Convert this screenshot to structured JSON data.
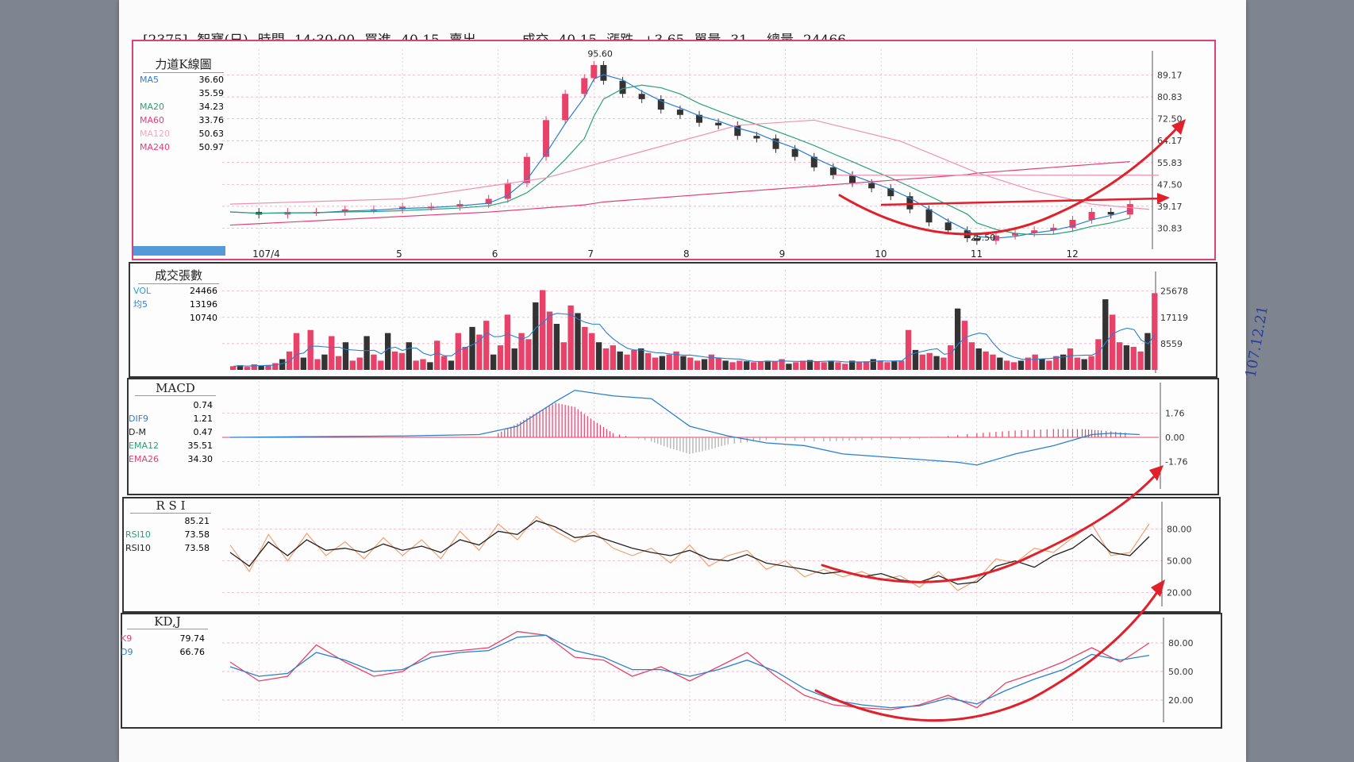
{
  "header": {
    "code": "[2375]",
    "name": "智寶(日)",
    "time_label": "時間",
    "time": "14:30:00",
    "bid_label": "買進",
    "bid": "40.15",
    "ask_label": "賣出",
    "ask": "-",
    "deal_label": "成交",
    "deal": "40.15",
    "change_label": "漲跌",
    "change": "+3.65",
    "unit_label": "單量",
    "unit": "31",
    "total_label": "總量",
    "total": "24466"
  },
  "colors": {
    "up": "#e8426a",
    "down": "#333333",
    "ma5": "#2a7fd0",
    "ma20": "#2aa07a",
    "ma60": "#e0407a",
    "arrow": "#e0202a"
  },
  "handwritten_note": "107.12.21",
  "chart_data": [
    {
      "type": "candlestick",
      "title": "力道K線圖",
      "legend": [
        {
          "name": "MA5",
          "value": "36.60"
        },
        {
          "name": "",
          "value": "35.59"
        },
        {
          "name": "MA20",
          "value": "34.23"
        },
        {
          "name": "MA60",
          "value": "33.76"
        },
        {
          "name": "MA120",
          "value": "50.63"
        },
        {
          "name": "MA240",
          "value": "50.97"
        }
      ],
      "y_ticks": [
        "89.17",
        "80.83",
        "72.50",
        "64.17",
        "55.83",
        "47.50",
        "39.17",
        "30.83"
      ],
      "ylim": [
        24,
        96
      ],
      "x_ticks": [
        "107/4",
        "5",
        "6",
        "7",
        "8",
        "9",
        "10",
        "11",
        "12"
      ],
      "annotations": [
        {
          "text": "95.60",
          "x": 7,
          "y": 95.6
        },
        {
          "text": "25.50",
          "x": 11,
          "y": 25.5
        }
      ],
      "close_series": [
        [
          3.2,
          37
        ],
        [
          3.5,
          36
        ],
        [
          3.8,
          37
        ],
        [
          4.1,
          37
        ],
        [
          4.4,
          38
        ],
        [
          4.7,
          38
        ],
        [
          5,
          39
        ],
        [
          5.3,
          39
        ],
        [
          5.6,
          40
        ],
        [
          5.9,
          42
        ],
        [
          6.1,
          48
        ],
        [
          6.3,
          58
        ],
        [
          6.5,
          72
        ],
        [
          6.7,
          82
        ],
        [
          6.9,
          88
        ],
        [
          7.0,
          93
        ],
        [
          7.1,
          87
        ],
        [
          7.3,
          82
        ],
        [
          7.5,
          80
        ],
        [
          7.7,
          76
        ],
        [
          7.9,
          74
        ],
        [
          8.1,
          71
        ],
        [
          8.3,
          70
        ],
        [
          8.5,
          66
        ],
        [
          8.7,
          65
        ],
        [
          8.9,
          61
        ],
        [
          9.1,
          58
        ],
        [
          9.3,
          54
        ],
        [
          9.5,
          51
        ],
        [
          9.7,
          48
        ],
        [
          9.9,
          46
        ],
        [
          10.1,
          43
        ],
        [
          10.3,
          38
        ],
        [
          10.5,
          33
        ],
        [
          10.7,
          30
        ],
        [
          10.9,
          27
        ],
        [
          11.0,
          26
        ],
        [
          11.2,
          28
        ],
        [
          11.4,
          29
        ],
        [
          11.6,
          30
        ],
        [
          11.8,
          31
        ],
        [
          12.0,
          34
        ],
        [
          12.2,
          37
        ],
        [
          12.4,
          36
        ],
        [
          12.6,
          40
        ]
      ]
    },
    {
      "type": "bar",
      "title": "成交張數",
      "legend": [
        {
          "name": "VOL",
          "value": "24466"
        },
        {
          "name": "均5",
          "value": "13196"
        },
        {
          "name": "",
          "value": "10740"
        }
      ],
      "y_ticks": [
        "25678",
        "17119",
        "8559"
      ],
      "ylim": [
        0,
        30000
      ],
      "values": [
        1200,
        1500,
        1000,
        1800,
        1400,
        1600,
        2200,
        3500,
        6000,
        12000,
        4000,
        13000,
        3500,
        5000,
        11000,
        4500,
        9000,
        3000,
        4000,
        11000,
        5000,
        3000,
        12000,
        6000,
        5500,
        9000,
        3000,
        3500,
        2500,
        9500,
        4500,
        3000,
        12000,
        7500,
        14000,
        11500,
        16000,
        5000,
        8000,
        18000,
        7000,
        12000,
        10000,
        22000,
        26000,
        19000,
        15000,
        9000,
        21000,
        18500,
        14000,
        12000,
        9000,
        7000,
        8000,
        6000,
        5000,
        6500,
        7000,
        5500,
        4000,
        4500,
        5000,
        6000,
        4500,
        4000,
        3000,
        3500,
        5000,
        4000,
        3000,
        2500,
        3000,
        2800,
        2500,
        2800,
        3000,
        2800,
        3500,
        2000,
        2500,
        3000,
        3200,
        2800,
        2500,
        3000,
        2500,
        2000,
        3000,
        2500,
        2800,
        3500,
        3000,
        2500,
        2800,
        3000,
        13000,
        6500,
        5000,
        5500,
        4500,
        4000,
        8000,
        20000,
        16000,
        9000,
        7000,
        6000,
        5000,
        4000,
        3000,
        2500,
        3000,
        4000,
        5000,
        3500,
        3000,
        4500,
        5000,
        7000,
        4000,
        3500,
        4500,
        10000,
        23000,
        18000,
        9000,
        8000,
        7500,
        6000,
        12000,
        25000
      ]
    },
    {
      "type": "line",
      "title": "MACD",
      "legend": [
        {
          "name": "",
          "value": "0.74"
        },
        {
          "name": "DIF9",
          "value": "1.21"
        },
        {
          "name": "D-M",
          "value": "0.47"
        },
        {
          "name": "EMA12",
          "value": "35.51"
        },
        {
          "name": "EMA26",
          "value": "34.30"
        }
      ],
      "y_ticks": [
        "1.76",
        "0.00",
        "-1.76"
      ],
      "ylim": [
        -3.5,
        3.5
      ],
      "dif": [
        [
          3.2,
          0
        ],
        [
          4,
          0.05
        ],
        [
          5,
          0.1
        ],
        [
          5.8,
          0.2
        ],
        [
          6.2,
          0.8
        ],
        [
          6.6,
          2.6
        ],
        [
          6.8,
          3.4
        ],
        [
          7.2,
          3.0
        ],
        [
          7.6,
          2.8
        ],
        [
          8.0,
          0.8
        ],
        [
          8.4,
          0.1
        ],
        [
          8.8,
          -0.4
        ],
        [
          9.2,
          -0.6
        ],
        [
          9.6,
          -1.2
        ],
        [
          10.0,
          -1.4
        ],
        [
          10.4,
          -1.6
        ],
        [
          10.8,
          -1.8
        ],
        [
          11.0,
          -2.0
        ],
        [
          11.4,
          -1.2
        ],
        [
          11.8,
          -0.6
        ],
        [
          12.2,
          0.2
        ],
        [
          12.4,
          0.3
        ],
        [
          12.7,
          0.2
        ]
      ],
      "osc": [
        [
          6.0,
          0.3
        ],
        [
          6.2,
          1.0
        ],
        [
          6.4,
          1.8
        ],
        [
          6.6,
          2.5
        ],
        [
          6.8,
          2.2
        ],
        [
          7.0,
          1.2
        ],
        [
          7.2,
          0.3
        ],
        [
          7.6,
          -0.3
        ],
        [
          7.8,
          -0.8
        ],
        [
          8.0,
          -1.2
        ],
        [
          8.2,
          -0.9
        ],
        [
          8.4,
          -0.5
        ],
        [
          8.8,
          -0.2
        ],
        [
          9.4,
          -0.3
        ],
        [
          9.8,
          -0.2
        ],
        [
          10.4,
          -0.1
        ],
        [
          11.0,
          0.3
        ],
        [
          11.4,
          0.5
        ],
        [
          11.8,
          0.6
        ],
        [
          12.1,
          0.6
        ],
        [
          12.3,
          0.5
        ],
        [
          12.6,
          0.3
        ]
      ]
    },
    {
      "type": "line",
      "title": "R S I",
      "legend": [
        {
          "name": "",
          "value": "85.21"
        },
        {
          "name": "RSI10",
          "value": "73.58"
        },
        {
          "name": "RSI10",
          "value": "73.58"
        }
      ],
      "y_ticks": [
        "80.00",
        "50.00",
        "20.00"
      ],
      "ylim": [
        10,
        100
      ],
      "rsi": [
        [
          3.2,
          58
        ],
        [
          3.4,
          45
        ],
        [
          3.6,
          68
        ],
        [
          3.8,
          55
        ],
        [
          4.0,
          70
        ],
        [
          4.2,
          60
        ],
        [
          4.4,
          62
        ],
        [
          4.6,
          58
        ],
        [
          4.8,
          66
        ],
        [
          5.0,
          60
        ],
        [
          5.2,
          64
        ],
        [
          5.4,
          58
        ],
        [
          5.6,
          70
        ],
        [
          5.8,
          65
        ],
        [
          6.0,
          78
        ],
        [
          6.2,
          75
        ],
        [
          6.4,
          88
        ],
        [
          6.6,
          82
        ],
        [
          6.8,
          72
        ],
        [
          7.0,
          74
        ],
        [
          7.2,
          68
        ],
        [
          7.4,
          62
        ],
        [
          7.6,
          58
        ],
        [
          7.8,
          55
        ],
        [
          8.0,
          60
        ],
        [
          8.2,
          52
        ],
        [
          8.4,
          50
        ],
        [
          8.6,
          56
        ],
        [
          8.8,
          48
        ],
        [
          9.0,
          45
        ],
        [
          9.2,
          42
        ],
        [
          9.4,
          38
        ],
        [
          9.6,
          40
        ],
        [
          9.8,
          35
        ],
        [
          10.0,
          38
        ],
        [
          10.2,
          32
        ],
        [
          10.4,
          30
        ],
        [
          10.6,
          36
        ],
        [
          10.8,
          28
        ],
        [
          11.0,
          30
        ],
        [
          11.2,
          45
        ],
        [
          11.4,
          50
        ],
        [
          11.6,
          44
        ],
        [
          11.8,
          55
        ],
        [
          12.0,
          62
        ],
        [
          12.2,
          75
        ],
        [
          12.4,
          58
        ],
        [
          12.6,
          55
        ],
        [
          12.8,
          73
        ]
      ],
      "rsi_fast": [
        [
          3.2,
          65
        ],
        [
          3.4,
          40
        ],
        [
          3.6,
          75
        ],
        [
          3.8,
          50
        ],
        [
          4.0,
          76
        ],
        [
          4.2,
          55
        ],
        [
          4.4,
          68
        ],
        [
          4.6,
          52
        ],
        [
          4.8,
          72
        ],
        [
          5.0,
          55
        ],
        [
          5.2,
          70
        ],
        [
          5.4,
          52
        ],
        [
          5.6,
          78
        ],
        [
          5.8,
          60
        ],
        [
          6.0,
          85
        ],
        [
          6.2,
          70
        ],
        [
          6.4,
          92
        ],
        [
          6.6,
          78
        ],
        [
          6.8,
          68
        ],
        [
          7.0,
          78
        ],
        [
          7.2,
          62
        ],
        [
          7.4,
          55
        ],
        [
          7.6,
          62
        ],
        [
          7.8,
          48
        ],
        [
          8.0,
          65
        ],
        [
          8.2,
          45
        ],
        [
          8.4,
          55
        ],
        [
          8.6,
          60
        ],
        [
          8.8,
          42
        ],
        [
          9.0,
          50
        ],
        [
          9.2,
          35
        ],
        [
          9.4,
          42
        ],
        [
          9.6,
          35
        ],
        [
          9.8,
          40
        ],
        [
          10.0,
          32
        ],
        [
          10.2,
          36
        ],
        [
          10.4,
          25
        ],
        [
          10.6,
          40
        ],
        [
          10.8,
          22
        ],
        [
          11.0,
          32
        ],
        [
          11.2,
          52
        ],
        [
          11.4,
          48
        ],
        [
          11.6,
          62
        ],
        [
          11.8,
          58
        ],
        [
          12.0,
          72
        ],
        [
          12.2,
          85
        ],
        [
          12.4,
          55
        ],
        [
          12.6,
          58
        ],
        [
          12.8,
          85
        ]
      ]
    },
    {
      "type": "line",
      "title": "KD,J",
      "legend": [
        {
          "name": "K9",
          "value": "79.74"
        },
        {
          "name": "D9",
          "value": "66.76"
        }
      ],
      "y_ticks": [
        "80.00",
        "50.00",
        "20.00"
      ],
      "ylim": [
        0,
        100
      ],
      "k": [
        [
          3.2,
          60
        ],
        [
          3.5,
          40
        ],
        [
          3.8,
          45
        ],
        [
          4.1,
          78
        ],
        [
          4.4,
          60
        ],
        [
          4.7,
          45
        ],
        [
          5.0,
          50
        ],
        [
          5.3,
          70
        ],
        [
          5.6,
          72
        ],
        [
          5.9,
          75
        ],
        [
          6.2,
          92
        ],
        [
          6.5,
          88
        ],
        [
          6.8,
          65
        ],
        [
          7.1,
          62
        ],
        [
          7.4,
          45
        ],
        [
          7.7,
          55
        ],
        [
          8.0,
          40
        ],
        [
          8.3,
          55
        ],
        [
          8.6,
          70
        ],
        [
          8.9,
          45
        ],
        [
          9.2,
          25
        ],
        [
          9.5,
          15
        ],
        [
          9.8,
          12
        ],
        [
          10.1,
          10
        ],
        [
          10.4,
          15
        ],
        [
          10.7,
          25
        ],
        [
          11.0,
          12
        ],
        [
          11.3,
          38
        ],
        [
          11.6,
          48
        ],
        [
          11.9,
          60
        ],
        [
          12.2,
          75
        ],
        [
          12.5,
          60
        ],
        [
          12.8,
          80
        ]
      ],
      "d": [
        [
          3.2,
          55
        ],
        [
          3.5,
          45
        ],
        [
          3.8,
          48
        ],
        [
          4.1,
          70
        ],
        [
          4.4,
          62
        ],
        [
          4.7,
          50
        ],
        [
          5.0,
          52
        ],
        [
          5.3,
          65
        ],
        [
          5.6,
          70
        ],
        [
          5.9,
          72
        ],
        [
          6.2,
          86
        ],
        [
          6.5,
          88
        ],
        [
          6.8,
          72
        ],
        [
          7.1,
          65
        ],
        [
          7.4,
          52
        ],
        [
          7.7,
          52
        ],
        [
          8.0,
          45
        ],
        [
          8.3,
          52
        ],
        [
          8.6,
          62
        ],
        [
          8.9,
          50
        ],
        [
          9.2,
          32
        ],
        [
          9.5,
          20
        ],
        [
          9.8,
          15
        ],
        [
          10.1,
          12
        ],
        [
          10.4,
          14
        ],
        [
          10.7,
          22
        ],
        [
          11.0,
          16
        ],
        [
          11.3,
          30
        ],
        [
          11.6,
          42
        ],
        [
          11.9,
          52
        ],
        [
          12.2,
          68
        ],
        [
          12.5,
          62
        ],
        [
          12.8,
          67
        ]
      ]
    }
  ]
}
